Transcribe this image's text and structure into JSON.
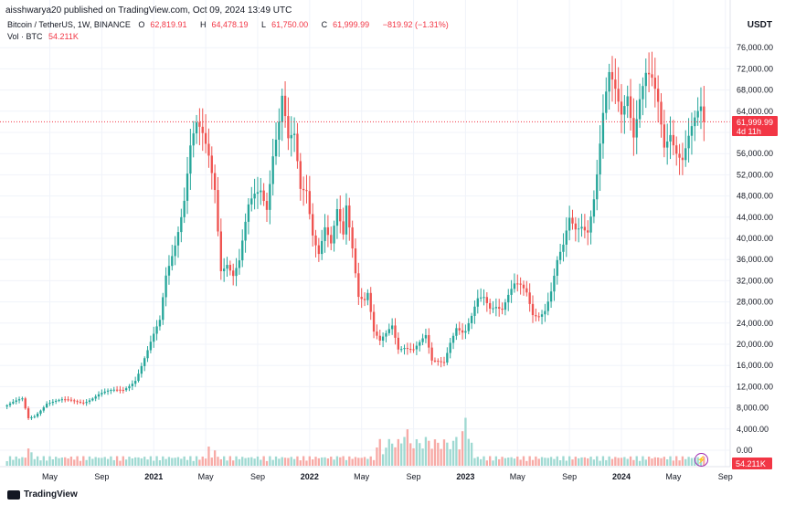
{
  "header": {
    "publisher": "aisshwarya20 published on TradingView.com, Oct 09, 2024 13:49 UTC",
    "symbol": "Bitcoin / TetherUS, 1W, BINANCE",
    "open_label": "O",
    "open": "62,819.91",
    "high_label": "H",
    "high": "64,478.19",
    "low_label": "L",
    "low": "61,750.00",
    "close_label": "C",
    "close": "61,999.99",
    "change": "−819.92 (−1.31%)",
    "volume_label": "Vol · BTC",
    "volume": "54.211K",
    "currency": "USDT"
  },
  "footer": {
    "brand": "TradingView"
  },
  "colors": {
    "up": "#26a69a",
    "down": "#ef5350",
    "up_vol": "#9fd9d2",
    "down_vol": "#f7aaa6",
    "last": "#f23645"
  },
  "chart_data": {
    "type": "candlestick",
    "title": "Bitcoin / TetherUS, 1W, BINANCE",
    "ylabel": "USDT",
    "ylim": [
      -1000,
      78000
    ],
    "y_ticks": [
      "76,000.00",
      "72,000.00",
      "68,000.00",
      "64,000.00",
      "60,000.00",
      "56,000.00",
      "52,000.00",
      "48,000.00",
      "44,000.00",
      "40,000.00",
      "36,000.00",
      "32,000.00",
      "28,000.00",
      "24,000.00",
      "20,000.00",
      "16,000.00",
      "12,000.00",
      "8,000.00",
      "4,000.00",
      "0.00"
    ],
    "y_tick_values": [
      76000,
      72000,
      68000,
      64000,
      60000,
      56000,
      52000,
      48000,
      44000,
      40000,
      36000,
      32000,
      28000,
      24000,
      20000,
      16000,
      12000,
      8000,
      4000,
      0
    ],
    "x_ticks": [
      "May",
      "Sep",
      "2021",
      "May",
      "Sep",
      "2022",
      "May",
      "Sep",
      "2023",
      "May",
      "Sep",
      "2024",
      "May",
      "Sep"
    ],
    "x_tick_index": [
      14,
      31,
      48,
      65,
      82,
      99,
      116,
      133,
      150,
      167,
      184,
      201,
      218,
      235
    ],
    "last_price": "61,999.99",
    "countdown": "4d 11h",
    "volume_badge": "54.211K",
    "anchors": [
      [
        0,
        8500
      ],
      [
        5,
        9500
      ],
      [
        7,
        6000
      ],
      [
        9,
        6500
      ],
      [
        13,
        9000
      ],
      [
        18,
        9300
      ],
      [
        25,
        9200
      ],
      [
        30,
        10500
      ],
      [
        34,
        11000
      ],
      [
        38,
        11500
      ],
      [
        42,
        13500
      ],
      [
        46,
        18500
      ],
      [
        50,
        24000
      ],
      [
        52,
        33000
      ],
      [
        55,
        40000
      ],
      [
        58,
        48000
      ],
      [
        60,
        57000
      ],
      [
        62,
        60000
      ],
      [
        64,
        58000
      ],
      [
        66,
        55000
      ],
      [
        68,
        50000
      ],
      [
        70,
        35000
      ],
      [
        72,
        36000
      ],
      [
        74,
        33000
      ],
      [
        76,
        35000
      ],
      [
        79,
        45000
      ],
      [
        81,
        48000
      ],
      [
        83,
        50000
      ],
      [
        85,
        47000
      ],
      [
        87,
        57000
      ],
      [
        89,
        62000
      ],
      [
        90,
        66000
      ],
      [
        92,
        57000
      ],
      [
        94,
        58000
      ],
      [
        96,
        49000
      ],
      [
        98,
        50000
      ],
      [
        100,
        42000
      ],
      [
        102,
        38000
      ],
      [
        104,
        42000
      ],
      [
        106,
        38000
      ],
      [
        108,
        44000
      ],
      [
        110,
        40000
      ],
      [
        111,
        46000
      ],
      [
        113,
        39000
      ],
      [
        115,
        30000
      ],
      [
        117,
        29000
      ],
      [
        118,
        30000
      ],
      [
        120,
        22000
      ],
      [
        122,
        20000
      ],
      [
        124,
        21500
      ],
      [
        126,
        23500
      ],
      [
        128,
        19500
      ],
      [
        130,
        20000
      ],
      [
        133,
        19200
      ],
      [
        135,
        20000
      ],
      [
        137,
        21000
      ],
      [
        139,
        16500
      ],
      [
        141,
        16800
      ],
      [
        143,
        17000
      ],
      [
        145,
        21000
      ],
      [
        147,
        23500
      ],
      [
        149,
        22000
      ],
      [
        150,
        22000
      ],
      [
        152,
        24500
      ],
      [
        154,
        28000
      ],
      [
        156,
        29000
      ],
      [
        158,
        27500
      ],
      [
        160,
        28000
      ],
      [
        162,
        27000
      ],
      [
        164,
        29000
      ],
      [
        166,
        30500
      ],
      [
        168,
        30300
      ],
      [
        170,
        29500
      ],
      [
        172,
        26000
      ],
      [
        174,
        26100
      ],
      [
        176,
        27000
      ],
      [
        178,
        30000
      ],
      [
        180,
        35000
      ],
      [
        182,
        37500
      ],
      [
        184,
        43000
      ],
      [
        186,
        42000
      ],
      [
        188,
        43500
      ],
      [
        190,
        42500
      ],
      [
        192,
        48000
      ],
      [
        193,
        52000
      ],
      [
        195,
        62000
      ],
      [
        197,
        69000
      ],
      [
        199,
        67000
      ],
      [
        201,
        64000
      ],
      [
        203,
        69000
      ],
      [
        205,
        61000
      ],
      [
        207,
        67000
      ],
      [
        209,
        70000
      ],
      [
        211,
        68000
      ],
      [
        213,
        64000
      ],
      [
        215,
        57000
      ],
      [
        217,
        61000
      ],
      [
        219,
        58000
      ],
      [
        221,
        56000
      ],
      [
        223,
        59000
      ],
      [
        225,
        61000
      ],
      [
        227,
        62800
      ],
      [
        228,
        62000
      ]
    ],
    "volume_spikes": [
      [
        7,
        4.5
      ],
      [
        8,
        3.5
      ],
      [
        66,
        5.0
      ],
      [
        68,
        4.0
      ],
      [
        109,
        2.2
      ],
      [
        123,
        3.0
      ],
      [
        127,
        4.8
      ],
      [
        130,
        7.5
      ],
      [
        131,
        9.5
      ],
      [
        137,
        7.5
      ],
      [
        138,
        6.5
      ],
      [
        146,
        6.5
      ],
      [
        147,
        7.5
      ],
      [
        149,
        9.0
      ],
      [
        150,
        12.5
      ],
      [
        151,
        7.0
      ],
      [
        152,
        6.0
      ]
    ]
  }
}
